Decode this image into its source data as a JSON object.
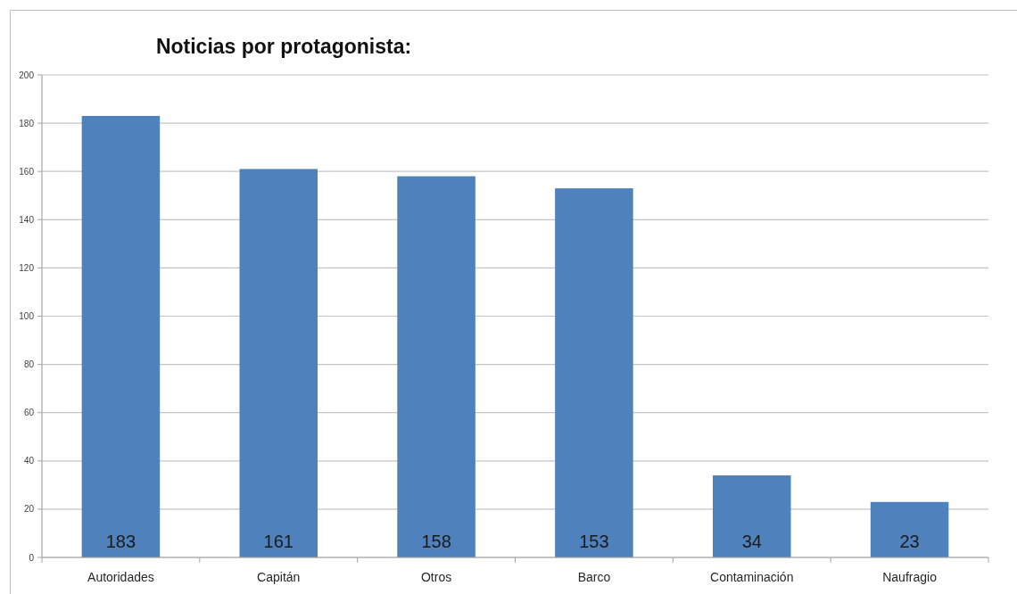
{
  "chart_data": {
    "type": "bar",
    "title": "Noticias por protagonista:",
    "categories": [
      "Autoridades",
      "Capitán",
      "Otros",
      "Barco",
      "Contaminación",
      "Naufragio"
    ],
    "values": [
      183,
      161,
      158,
      153,
      34,
      23
    ],
    "color": "#4f81bd",
    "ylim": [
      0,
      200
    ],
    "yticks": [
      0,
      20,
      40,
      60,
      80,
      100,
      120,
      140,
      160,
      180,
      200
    ],
    "grid": "y",
    "data_labels": true
  }
}
